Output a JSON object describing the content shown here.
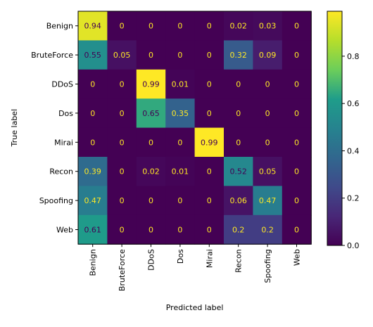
{
  "chart_data": {
    "type": "heatmap",
    "title": "",
    "xlabel": "Predicted label",
    "ylabel": "True label",
    "x_categories": [
      "Benign",
      "BruteForce",
      "DDoS",
      "Dos",
      "Mirai",
      "Recon",
      "Spoofing",
      "Web"
    ],
    "y_categories": [
      "Benign",
      "BruteForce",
      "DDoS",
      "Dos",
      "Mirai",
      "Recon",
      "Spoofing",
      "Web"
    ],
    "values": [
      [
        0.94,
        0,
        0,
        0,
        0,
        0.02,
        0.03,
        0
      ],
      [
        0.55,
        0.05,
        0,
        0,
        0,
        0.32,
        0.09,
        0
      ],
      [
        0,
        0,
        0.99,
        0.01,
        0,
        0,
        0,
        0
      ],
      [
        0,
        0,
        0.65,
        0.35,
        0,
        0,
        0,
        0
      ],
      [
        0,
        0,
        0,
        0,
        0.99,
        0,
        0,
        0
      ],
      [
        0.39,
        0,
        0.02,
        0.01,
        0,
        0.52,
        0.05,
        0
      ],
      [
        0.47,
        0,
        0,
        0,
        0,
        0.06,
        0.47,
        0
      ],
      [
        0.61,
        0,
        0,
        0,
        0,
        0.2,
        0.2,
        0
      ]
    ],
    "colormap": "viridis",
    "colorbar": {
      "range": [
        0,
        0.99
      ],
      "ticks": [
        0,
        0.2,
        0.4,
        0.6,
        0.8
      ],
      "tick_labels": [
        "0.0",
        "0.2",
        "0.4",
        "0.6",
        "0.8"
      ]
    },
    "colors": {
      "text_on_dark": "#fde725",
      "text_on_light": "#440154"
    }
  }
}
